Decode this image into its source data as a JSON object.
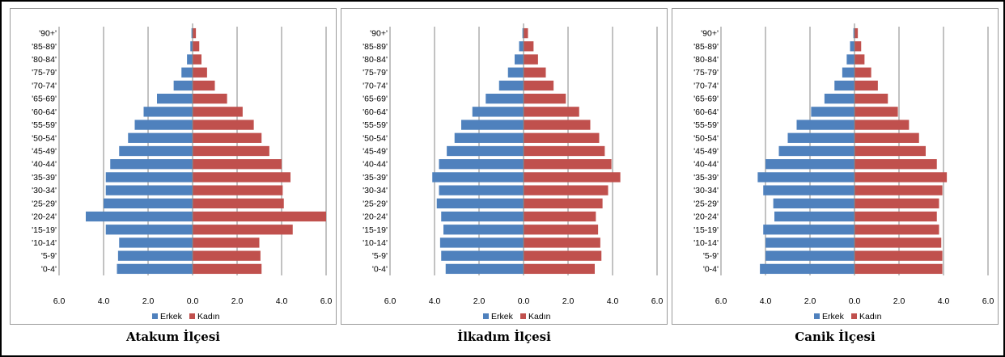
{
  "colors": {
    "male": "#4F81BD",
    "female": "#C0504D",
    "grid": "#868686"
  },
  "chart_data": [
    {
      "type": "bar",
      "orientation": "horizontal-pyramid",
      "title": "Atakum İlçesi",
      "categories": [
        "'0-4'",
        "'5-9'",
        "'10-14'",
        "'15-19'",
        "'20-24'",
        "'25-29'",
        "'30-34'",
        "'35-39'",
        "'40-44'",
        "'45-49'",
        "'50-54'",
        "'55-59'",
        "'60-64'",
        "'65-69'",
        "'70-74'",
        "'75-79'",
        "'80-84'",
        "'85-89'",
        "'90+'"
      ],
      "series": [
        {
          "name": "Erkek",
          "values": [
            -3.4,
            -3.35,
            -3.3,
            -3.9,
            -4.8,
            -4.0,
            -3.9,
            -3.9,
            -3.7,
            -3.3,
            -2.9,
            -2.6,
            -2.2,
            -1.6,
            -0.85,
            -0.5,
            -0.25,
            -0.1,
            -0.05
          ]
        },
        {
          "name": "Kadın",
          "values": [
            3.1,
            3.05,
            3.0,
            4.5,
            6.0,
            4.1,
            4.05,
            4.4,
            4.0,
            3.45,
            3.1,
            2.75,
            2.25,
            1.55,
            1.0,
            0.65,
            0.4,
            0.3,
            0.15
          ]
        }
      ],
      "xticks": [
        "6.0",
        "4.0",
        "2.0",
        "0.0",
        "2.0",
        "4.0",
        "6.0"
      ],
      "xlim": [
        -6,
        6
      ],
      "grid": true,
      "legend": "bottom"
    },
    {
      "type": "bar",
      "orientation": "horizontal-pyramid",
      "title": "İlkadım İlçesi",
      "categories": [
        "'0-4'",
        "'5-9'",
        "'10-14'",
        "'15-19'",
        "'20-24'",
        "'25-29'",
        "'30-34'",
        "'35-39'",
        "'40-44'",
        "'45-49'",
        "'50-54'",
        "'55-59'",
        "'60-64'",
        "'65-69'",
        "'70-74'",
        "'75-79'",
        "'80-84'",
        "'85-89'",
        "'90+'"
      ],
      "series": [
        {
          "name": "Erkek",
          "values": [
            -3.5,
            -3.7,
            -3.75,
            -3.6,
            -3.7,
            -3.9,
            -3.8,
            -4.1,
            -3.8,
            -3.45,
            -3.1,
            -2.8,
            -2.3,
            -1.7,
            -1.1,
            -0.7,
            -0.4,
            -0.2,
            -0.05
          ]
        },
        {
          "name": "Kadın",
          "values": [
            3.2,
            3.5,
            3.45,
            3.35,
            3.25,
            3.55,
            3.8,
            4.35,
            3.95,
            3.65,
            3.4,
            3.0,
            2.5,
            1.9,
            1.35,
            1.0,
            0.65,
            0.45,
            0.2
          ]
        }
      ],
      "xticks": [
        "6.0",
        "4.0",
        "2.0",
        "0.0",
        "2.0",
        "4.0",
        "6.0"
      ],
      "xlim": [
        -6,
        6
      ],
      "grid": true,
      "legend": "bottom"
    },
    {
      "type": "bar",
      "orientation": "horizontal-pyramid",
      "title": "Canik İlçesi",
      "categories": [
        "'0-4'",
        "'5-9'",
        "'10-14'",
        "'15-19'",
        "'20-24'",
        "'25-29'",
        "'30-34'",
        "'35-39'",
        "'40-44'",
        "'45-49'",
        "'50-54'",
        "'55-59'",
        "'60-64'",
        "'65-69'",
        "'70-74'",
        "'75-79'",
        "'80-84'",
        "'85-89'",
        "'90+'"
      ],
      "series": [
        {
          "name": "Erkek",
          "values": [
            -4.25,
            -4.0,
            -4.0,
            -4.1,
            -3.6,
            -3.65,
            -4.1,
            -4.35,
            -4.0,
            -3.4,
            -3.0,
            -2.6,
            -1.95,
            -1.35,
            -0.9,
            -0.55,
            -0.35,
            -0.2,
            -0.05
          ]
        },
        {
          "name": "Kadın",
          "values": [
            3.95,
            3.95,
            3.9,
            3.8,
            3.7,
            3.8,
            3.95,
            4.15,
            3.7,
            3.2,
            2.9,
            2.45,
            1.95,
            1.5,
            1.05,
            0.75,
            0.45,
            0.3,
            0.15
          ]
        }
      ],
      "xticks": [
        "6.0",
        "4.0",
        "2.0",
        "0.0",
        "2.0",
        "4.0",
        "6.0"
      ],
      "xlim": [
        -6,
        6
      ],
      "grid": true,
      "legend": "bottom"
    }
  ]
}
